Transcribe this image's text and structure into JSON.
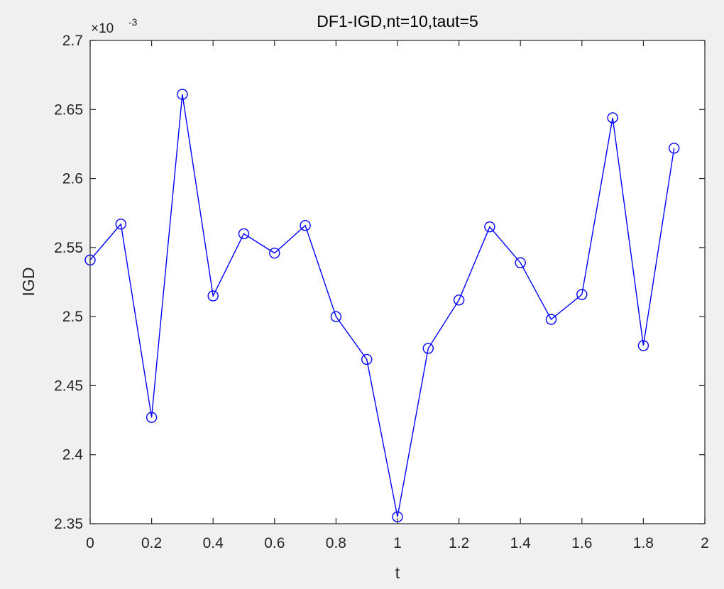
{
  "chart_data": {
    "type": "line",
    "title": "DF1-IGD,nt=10,taut=5",
    "xlabel": "t",
    "ylabel": "IGD",
    "y_exponent_label": {
      "base": "×10",
      "exponent": "-3"
    },
    "xlim": [
      0,
      2
    ],
    "ylim": [
      2.35,
      2.7
    ],
    "xticks": [
      0,
      0.2,
      0.4,
      0.6,
      0.8,
      1,
      1.2,
      1.4,
      1.6,
      1.8,
      2
    ],
    "xtick_labels": [
      "0",
      "0.2",
      "0.4",
      "0.6",
      "0.8",
      "1",
      "1.2",
      "1.4",
      "1.6",
      "1.8",
      "2"
    ],
    "yticks": [
      2.35,
      2.4,
      2.45,
      2.5,
      2.55,
      2.6,
      2.65,
      2.7
    ],
    "ytick_labels": [
      "2.35",
      "2.4",
      "2.45",
      "2.5",
      "2.55",
      "2.6",
      "2.65",
      "2.7"
    ],
    "grid": false,
    "series": [
      {
        "color": "#0000ff",
        "marker": "circle",
        "x": [
          0,
          0.1,
          0.2,
          0.3,
          0.4,
          0.5,
          0.6,
          0.7,
          0.8,
          0.9,
          1.0,
          1.1,
          1.2,
          1.3,
          1.4,
          1.5,
          1.6,
          1.7,
          1.8,
          1.9
        ],
        "y": [
          2.541,
          2.567,
          2.427,
          2.661,
          2.515,
          2.56,
          2.546,
          2.566,
          2.5,
          2.469,
          2.355,
          2.477,
          2.512,
          2.565,
          2.539,
          2.498,
          2.516,
          2.644,
          2.479,
          2.622
        ]
      }
    ]
  }
}
